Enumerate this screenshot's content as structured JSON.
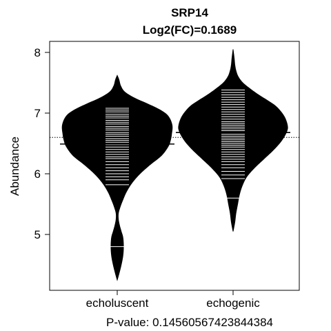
{
  "chart_data": {
    "type": "beanplot",
    "title": "SRP14",
    "subtitle": "Log2(FC)=0.1689",
    "xlabel": "P-value: 0.14560567423844384",
    "ylabel": "Abundance",
    "ylim": [
      4.1,
      8.15
    ],
    "yticks": [
      5,
      6,
      7,
      8
    ],
    "categories": [
      "echoluscent",
      "echogenic"
    ],
    "overall_mean": 6.6,
    "series": [
      {
        "name": "echoluscent",
        "mean": 6.49,
        "min": 4.25,
        "max": 7.62,
        "density": [
          [
            4.25,
            0.0
          ],
          [
            4.35,
            0.03
          ],
          [
            4.5,
            0.07
          ],
          [
            4.65,
            0.1
          ],
          [
            4.8,
            0.11
          ],
          [
            4.95,
            0.1
          ],
          [
            5.05,
            0.07
          ],
          [
            5.15,
            0.04
          ],
          [
            5.25,
            0.02
          ],
          [
            5.35,
            0.02
          ],
          [
            5.45,
            0.05
          ],
          [
            5.55,
            0.09
          ],
          [
            5.7,
            0.16
          ],
          [
            5.85,
            0.26
          ],
          [
            6.0,
            0.4
          ],
          [
            6.15,
            0.58
          ],
          [
            6.3,
            0.78
          ],
          [
            6.45,
            0.9
          ],
          [
            6.55,
            0.94
          ],
          [
            6.65,
            0.96
          ],
          [
            6.8,
            0.97
          ],
          [
            6.95,
            0.9
          ],
          [
            7.05,
            0.76
          ],
          [
            7.15,
            0.54
          ],
          [
            7.25,
            0.3
          ],
          [
            7.35,
            0.13
          ],
          [
            7.45,
            0.06
          ],
          [
            7.55,
            0.03
          ],
          [
            7.62,
            0.0
          ]
        ],
        "observations": [
          4.8,
          5.82,
          5.9,
          5.95,
          6.0,
          6.05,
          6.1,
          6.15,
          6.2,
          6.25,
          6.28,
          6.32,
          6.36,
          6.4,
          6.44,
          6.48,
          6.52,
          6.55,
          6.58,
          6.62,
          6.65,
          6.68,
          6.72,
          6.75,
          6.78,
          6.82,
          6.85,
          6.88,
          6.92,
          6.95,
          6.98,
          7.02,
          7.05,
          7.08
        ]
      },
      {
        "name": "echogenic",
        "mean": 6.68,
        "min": 5.05,
        "max": 8.05,
        "density": [
          [
            5.05,
            0.0
          ],
          [
            5.2,
            0.03
          ],
          [
            5.35,
            0.05
          ],
          [
            5.5,
            0.08
          ],
          [
            5.65,
            0.11
          ],
          [
            5.8,
            0.16
          ],
          [
            5.95,
            0.24
          ],
          [
            6.1,
            0.38
          ],
          [
            6.25,
            0.55
          ],
          [
            6.4,
            0.72
          ],
          [
            6.55,
            0.86
          ],
          [
            6.7,
            0.95
          ],
          [
            6.8,
            0.96
          ],
          [
            6.95,
            0.9
          ],
          [
            7.1,
            0.77
          ],
          [
            7.2,
            0.62
          ],
          [
            7.3,
            0.45
          ],
          [
            7.4,
            0.3
          ],
          [
            7.5,
            0.17
          ],
          [
            7.6,
            0.09
          ],
          [
            7.7,
            0.05
          ],
          [
            7.8,
            0.03
          ],
          [
            7.9,
            0.02
          ],
          [
            8.05,
            0.0
          ]
        ],
        "observations": [
          5.6,
          5.92,
          5.98,
          6.04,
          6.1,
          6.15,
          6.2,
          6.24,
          6.28,
          6.32,
          6.36,
          6.4,
          6.44,
          6.47,
          6.5,
          6.53,
          6.56,
          6.59,
          6.62,
          6.65,
          6.68,
          6.71,
          6.74,
          6.77,
          6.8,
          6.83,
          6.86,
          6.9,
          6.94,
          6.98,
          7.02,
          7.06,
          7.1,
          7.14,
          7.18,
          7.22,
          7.26,
          7.3,
          7.34,
          7.38
        ]
      }
    ]
  }
}
